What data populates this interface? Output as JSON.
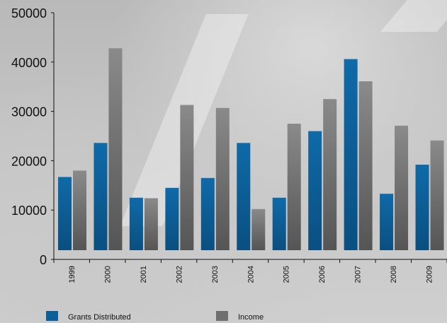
{
  "chart_data": {
    "type": "bar",
    "title": "",
    "xlabel": "",
    "ylabel": "",
    "categories": [
      "1999",
      "2000",
      "2001",
      "2002",
      "2003",
      "2004",
      "2005",
      "2006",
      "2007",
      "2008",
      "2009"
    ],
    "series": [
      {
        "name": "Grants Distributed",
        "color": "#0b6098",
        "values": [
          16700,
          23600,
          12500,
          14500,
          16500,
          23600,
          12500,
          26000,
          40600,
          13300,
          19200
        ]
      },
      {
        "name": "Income",
        "color": "#6f6f6f",
        "values": [
          18000,
          42800,
          12400,
          31300,
          30700,
          10200,
          27500,
          32500,
          36100,
          27100,
          24100
        ]
      }
    ],
    "ylim": [
      0,
      50000
    ],
    "yticks": [
      0,
      10000,
      20000,
      30000,
      40000,
      50000
    ],
    "legend_position": "bottom",
    "grid": false
  }
}
